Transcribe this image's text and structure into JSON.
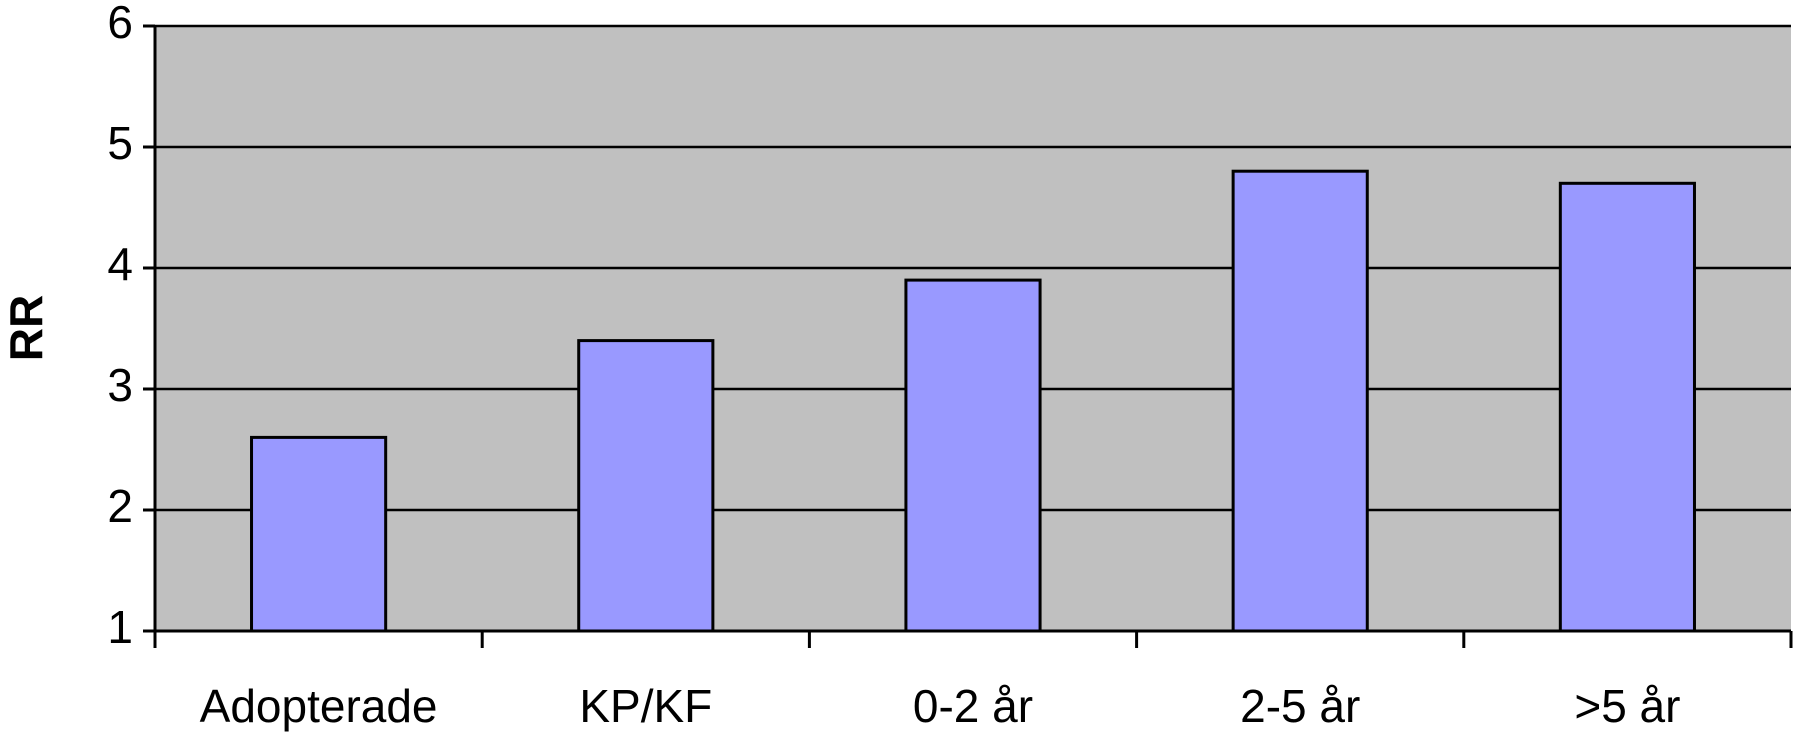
{
  "chart_data": {
    "type": "bar",
    "y_label": "RR",
    "categories": [
      "Adopterade",
      "KP/KF",
      "0-2 år",
      "2-5 år",
      ">5 år"
    ],
    "values": [
      2.6,
      3.4,
      3.9,
      4.8,
      4.7
    ],
    "color": "#9999ff",
    "ylim": [
      1,
      6
    ],
    "yticks": [
      1,
      2,
      3,
      4,
      5,
      6
    ],
    "grid": true
  }
}
